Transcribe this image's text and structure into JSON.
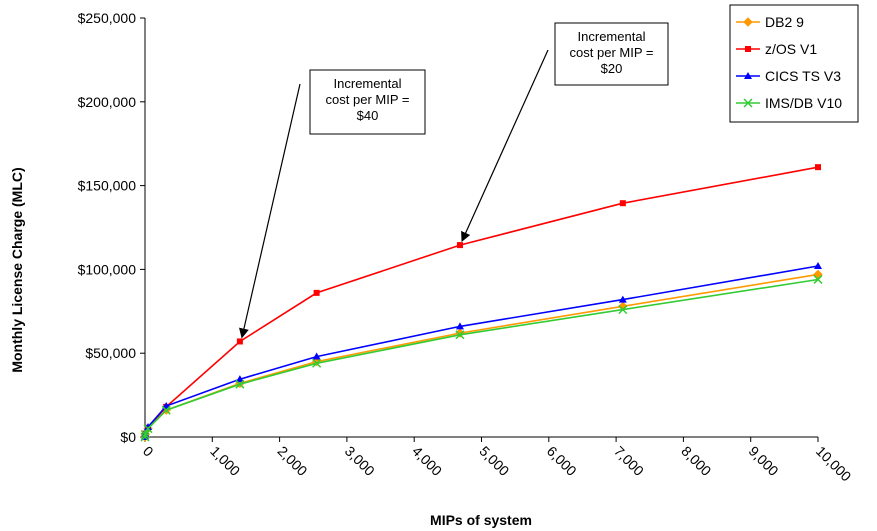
{
  "chart_data": {
    "type": "line",
    "xlabel": "MIPs of system",
    "ylabel": "Monthly License Charge (MLC)",
    "xlim": [
      0,
      10000
    ],
    "ylim": [
      0,
      250000
    ],
    "x_ticks": [
      "0",
      "1,000",
      "2,000",
      "3,000",
      "4,000",
      "5,000",
      "6,000",
      "7,000",
      "8,000",
      "9,000",
      "10,000"
    ],
    "y_ticks": [
      "$0",
      "$50,000",
      "$100,000",
      "$150,000",
      "$200,000",
      "$250,000"
    ],
    "grid": false,
    "legend_position": "top-right",
    "series": [
      {
        "name": "DB2 9",
        "color": "#FF9900",
        "marker": "diamond",
        "x": [
          0,
          3,
          45,
          315,
          1410,
          2550,
          4680,
          7100,
          10000
        ],
        "y": [
          0,
          1500,
          5000,
          16000,
          32000,
          45000,
          62000,
          78000,
          97000
        ]
      },
      {
        "name": "z/OS V1",
        "color": "#FF0000",
        "marker": "square",
        "x": [
          0,
          3,
          45,
          315,
          1410,
          2550,
          4680,
          7100,
          10000
        ],
        "y": [
          0,
          2000,
          5500,
          18000,
          57000,
          86000,
          114500,
          139500,
          161000
        ]
      },
      {
        "name": "CICS TS V3",
        "color": "#0000FF",
        "marker": "triangle",
        "x": [
          0,
          3,
          45,
          315,
          1410,
          2550,
          4680,
          7100,
          10000
        ],
        "y": [
          0,
          2000,
          6000,
          18500,
          34500,
          48000,
          66000,
          82000,
          102000
        ]
      },
      {
        "name": "IMS/DB V10",
        "color": "#33CC33",
        "marker": "x",
        "x": [
          0,
          3,
          45,
          315,
          1410,
          2550,
          4680,
          7100,
          10000
        ],
        "y": [
          0,
          1500,
          5000,
          16000,
          31500,
          44000,
          61000,
          76000,
          94000
        ]
      }
    ],
    "annotations": [
      {
        "lines": [
          "Incremental",
          "cost per MIP =",
          "$40"
        ],
        "points_to": {
          "x": 1410,
          "y": 57000
        }
      },
      {
        "lines": [
          "Incremental",
          "cost per MIP =",
          "$20"
        ],
        "points_to": {
          "x": 4680,
          "y": 114500
        }
      }
    ]
  }
}
